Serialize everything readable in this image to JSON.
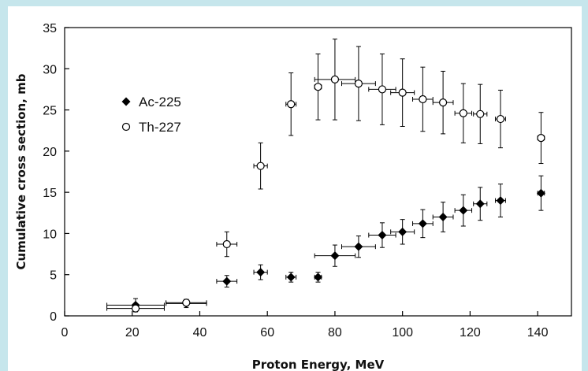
{
  "chart_data": {
    "type": "scatter",
    "title": "",
    "xlabel": "Proton Energy, MeV",
    "ylabel": "Cumulative cross section, mb",
    "xlim": [
      0,
      150
    ],
    "ylim": [
      0,
      35
    ],
    "xticks": [
      0,
      20,
      40,
      60,
      80,
      100,
      120,
      140
    ],
    "yticks": [
      0,
      5,
      10,
      15,
      20,
      25,
      30,
      35
    ],
    "grid": false,
    "legend_position": "upper-left",
    "series": [
      {
        "name": "Ac-225",
        "marker": "filled-diamond",
        "color": "#000000",
        "points": [
          {
            "x": 21,
            "y": 1.3,
            "xerr": 8.5,
            "yerr": 0.8
          },
          {
            "x": 36,
            "y": 1.5,
            "xerr": 6,
            "yerr": 0.5
          },
          {
            "x": 48,
            "y": 4.2,
            "xerr": 3,
            "yerr": 0.7
          },
          {
            "x": 58,
            "y": 5.3,
            "xerr": 2,
            "yerr": 0.9
          },
          {
            "x": 67,
            "y": 4.7,
            "xerr": 1.5,
            "yerr": 0.6
          },
          {
            "x": 75,
            "y": 4.7,
            "xerr": 1,
            "yerr": 0.6
          },
          {
            "x": 80,
            "y": 7.3,
            "xerr": 6,
            "yerr": 1.3
          },
          {
            "x": 87,
            "y": 8.4,
            "xerr": 5,
            "yerr": 1.3
          },
          {
            "x": 94,
            "y": 9.8,
            "xerr": 4,
            "yerr": 1.5
          },
          {
            "x": 100,
            "y": 10.2,
            "xerr": 3.5,
            "yerr": 1.5
          },
          {
            "x": 106,
            "y": 11.2,
            "xerr": 3,
            "yerr": 1.7
          },
          {
            "x": 112,
            "y": 12.0,
            "xerr": 3,
            "yerr": 1.8
          },
          {
            "x": 118,
            "y": 12.8,
            "xerr": 2.5,
            "yerr": 1.9
          },
          {
            "x": 123,
            "y": 13.6,
            "xerr": 2,
            "yerr": 2.0
          },
          {
            "x": 129,
            "y": 14.0,
            "xerr": 1.5,
            "yerr": 2.0
          },
          {
            "x": 141,
            "y": 14.9,
            "xerr": 1,
            "yerr": 2.1
          }
        ]
      },
      {
        "name": "Th-227",
        "marker": "open-circle",
        "color": "#000000",
        "points": [
          {
            "x": 21,
            "y": 0.9,
            "xerr": 8.5,
            "yerr": 0.4
          },
          {
            "x": 36,
            "y": 1.6,
            "xerr": 6,
            "yerr": 0.4
          },
          {
            "x": 48,
            "y": 8.7,
            "xerr": 3,
            "yerr": 1.5
          },
          {
            "x": 58,
            "y": 18.2,
            "xerr": 2,
            "yerr": 2.8
          },
          {
            "x": 67,
            "y": 25.7,
            "xerr": 1.5,
            "yerr": 3.8
          },
          {
            "x": 75,
            "y": 27.8,
            "xerr": 1,
            "yerr": 4.0
          },
          {
            "x": 80,
            "y": 28.7,
            "xerr": 6,
            "yerr": 4.9
          },
          {
            "x": 87,
            "y": 28.2,
            "xerr": 5,
            "yerr": 4.5
          },
          {
            "x": 94,
            "y": 27.5,
            "xerr": 4,
            "yerr": 4.3
          },
          {
            "x": 100,
            "y": 27.1,
            "xerr": 3.5,
            "yerr": 4.1
          },
          {
            "x": 106,
            "y": 26.3,
            "xerr": 3,
            "yerr": 3.9
          },
          {
            "x": 112,
            "y": 25.9,
            "xerr": 3,
            "yerr": 3.8
          },
          {
            "x": 118,
            "y": 24.6,
            "xerr": 2.5,
            "yerr": 3.6
          },
          {
            "x": 123,
            "y": 24.5,
            "xerr": 2,
            "yerr": 3.6
          },
          {
            "x": 129,
            "y": 23.9,
            "xerr": 1.5,
            "yerr": 3.5
          },
          {
            "x": 141,
            "y": 21.6,
            "xerr": 1,
            "yerr": 3.1
          }
        ]
      }
    ]
  }
}
